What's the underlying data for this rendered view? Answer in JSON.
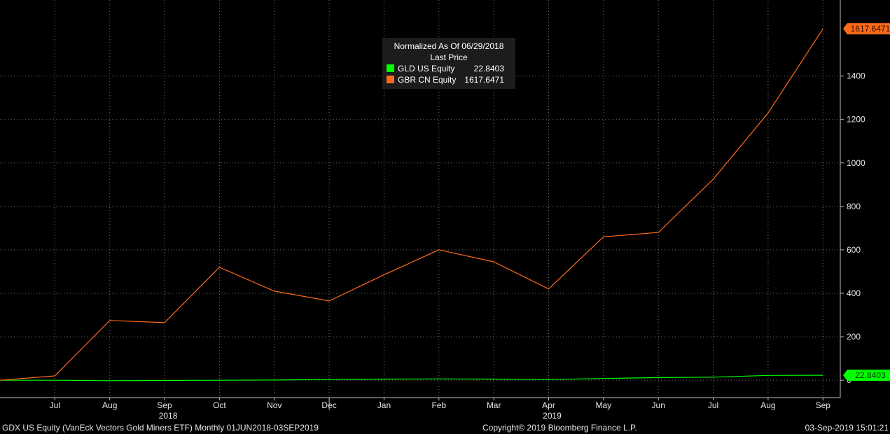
{
  "footer": {
    "left": "GDX US Equity (VanEck Vectors Gold Miners ETF)  Monthly 01JUN2018-03SEP2019",
    "center": "Copyright© 2019 Bloomberg Finance L.P.",
    "right": "03-Sep-2019 15:01:21"
  },
  "legend": {
    "title": "Normalized As Of 06/29/2018",
    "subtitle": "Last Price",
    "items": [
      {
        "label": "GLD US Equity",
        "value": "22.8403",
        "color": "#00ff00"
      },
      {
        "label": "GBR CN Equity",
        "value": "1617.6471",
        "color": "#ff6a1a"
      }
    ]
  },
  "chart_data": {
    "type": "line",
    "title": "",
    "xlabel": "",
    "ylabel": "",
    "ylim": [
      -80,
      1750
    ],
    "yticks": [
      0,
      200,
      400,
      600,
      800,
      1000,
      1200,
      1400
    ],
    "grid": true,
    "legend_position": "top-center",
    "categories": [
      "Jun",
      "Jul",
      "Aug",
      "Sep",
      "Oct",
      "Nov",
      "Dec",
      "Jan",
      "Feb",
      "Mar",
      "Apr",
      "May",
      "Jun",
      "Jul",
      "Aug",
      "Sep"
    ],
    "x_tick_labels": [
      "Jul",
      "Aug",
      "Sep",
      "Oct",
      "Nov",
      "Dec",
      "Jan",
      "Feb",
      "Mar",
      "Apr",
      "May",
      "Jun",
      "Jul",
      "Aug",
      "Sep"
    ],
    "year_labels": [
      {
        "label": "2018",
        "at_index": 3
      },
      {
        "label": "2019",
        "at_index": 10
      }
    ],
    "series": [
      {
        "name": "GLD US Equity",
        "color": "#00ff00",
        "values": [
          0,
          0,
          -2,
          -1,
          0,
          1,
          3,
          5,
          6,
          5,
          3,
          8,
          12,
          14,
          22,
          22.8403
        ],
        "last_label": "22.8403"
      },
      {
        "name": "GBR CN Equity",
        "color": "#ff6a1a",
        "values": [
          0,
          20,
          275,
          265,
          520,
          410,
          365,
          485,
          600,
          545,
          420,
          660,
          680,
          925,
          1230,
          1617.6471
        ],
        "last_label": "1617.6471"
      }
    ]
  }
}
